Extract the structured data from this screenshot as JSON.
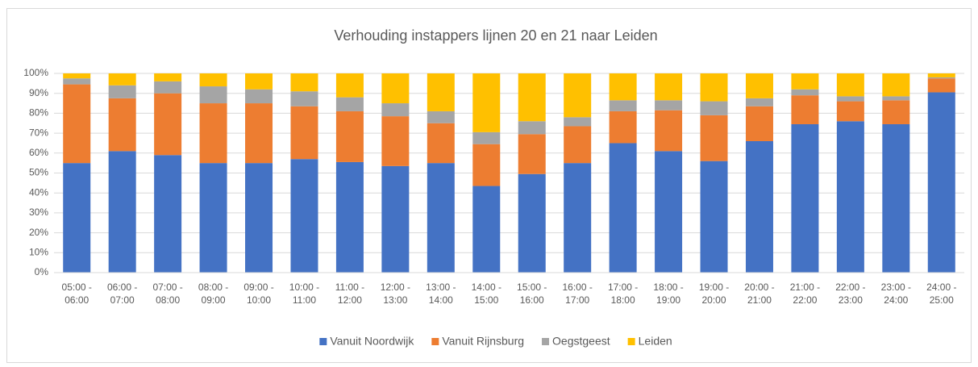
{
  "chart_data": {
    "type": "stacked_bar",
    "title": "Verhouding instappers lijnen 20 en 21 naar Leiden",
    "categories": [
      "05:00 - 06:00",
      "06:00 - 07:00",
      "07:00 - 08:00",
      "08:00 - 09:00",
      "09:00 - 10:00",
      "10:00 - 11:00",
      "11:00 - 12:00",
      "12:00 - 13:00",
      "13:00 - 14:00",
      "14:00 - 15:00",
      "15:00 - 16:00",
      "16:00 - 17:00",
      "17:00 - 18:00",
      "18:00 - 19:00",
      "19:00 - 20:00",
      "20:00 - 21:00",
      "21:00 - 22:00",
      "22:00 - 23:00",
      "23:00 - 24:00",
      "24:00 - 25:00"
    ],
    "series": [
      {
        "name": "Vanuit Noordwijk",
        "color": "#4472c4",
        "values": [
          55,
          61,
          59,
          55,
          55,
          57,
          55.5,
          53.5,
          55,
          43.5,
          49.5,
          55,
          65,
          61,
          56,
          66,
          74.5,
          76,
          74.5,
          90.5
        ]
      },
      {
        "name": "Vanuit Rijnsburg",
        "color": "#ed7d31",
        "values": [
          39.5,
          26.5,
          31,
          30,
          30,
          26.5,
          25.5,
          25,
          20,
          21,
          20,
          18.5,
          16,
          20.5,
          23,
          17.5,
          14.5,
          10,
          12,
          7
        ]
      },
      {
        "name": "Oegstgeest",
        "color": "#a5a5a5",
        "values": [
          3,
          6.5,
          6,
          8.5,
          7,
          7.5,
          7,
          6.5,
          6,
          6,
          6.5,
          4.5,
          5.5,
          5,
          7,
          4,
          3,
          2.5,
          2,
          0.5
        ]
      },
      {
        "name": "Leiden",
        "color": "#ffc000",
        "values": [
          2.5,
          6,
          4,
          6.5,
          8,
          9,
          12,
          15,
          19,
          29.5,
          24,
          22,
          13.5,
          13.5,
          14,
          12.5,
          8,
          11.5,
          11.5,
          2
        ]
      }
    ],
    "ylim": [
      0,
      100
    ],
    "yticks": [
      {
        "value": 0,
        "label": "0%"
      },
      {
        "value": 10,
        "label": "10%"
      },
      {
        "value": 20,
        "label": "20%"
      },
      {
        "value": 30,
        "label": "30%"
      },
      {
        "value": 40,
        "label": "40%"
      },
      {
        "value": 50,
        "label": "50%"
      },
      {
        "value": 60,
        "label": "60%"
      },
      {
        "value": 70,
        "label": "70%"
      },
      {
        "value": 80,
        "label": "80%"
      },
      {
        "value": 90,
        "label": "90%"
      },
      {
        "value": 100,
        "label": "100%"
      }
    ],
    "grid": true,
    "legend": "bottom"
  }
}
